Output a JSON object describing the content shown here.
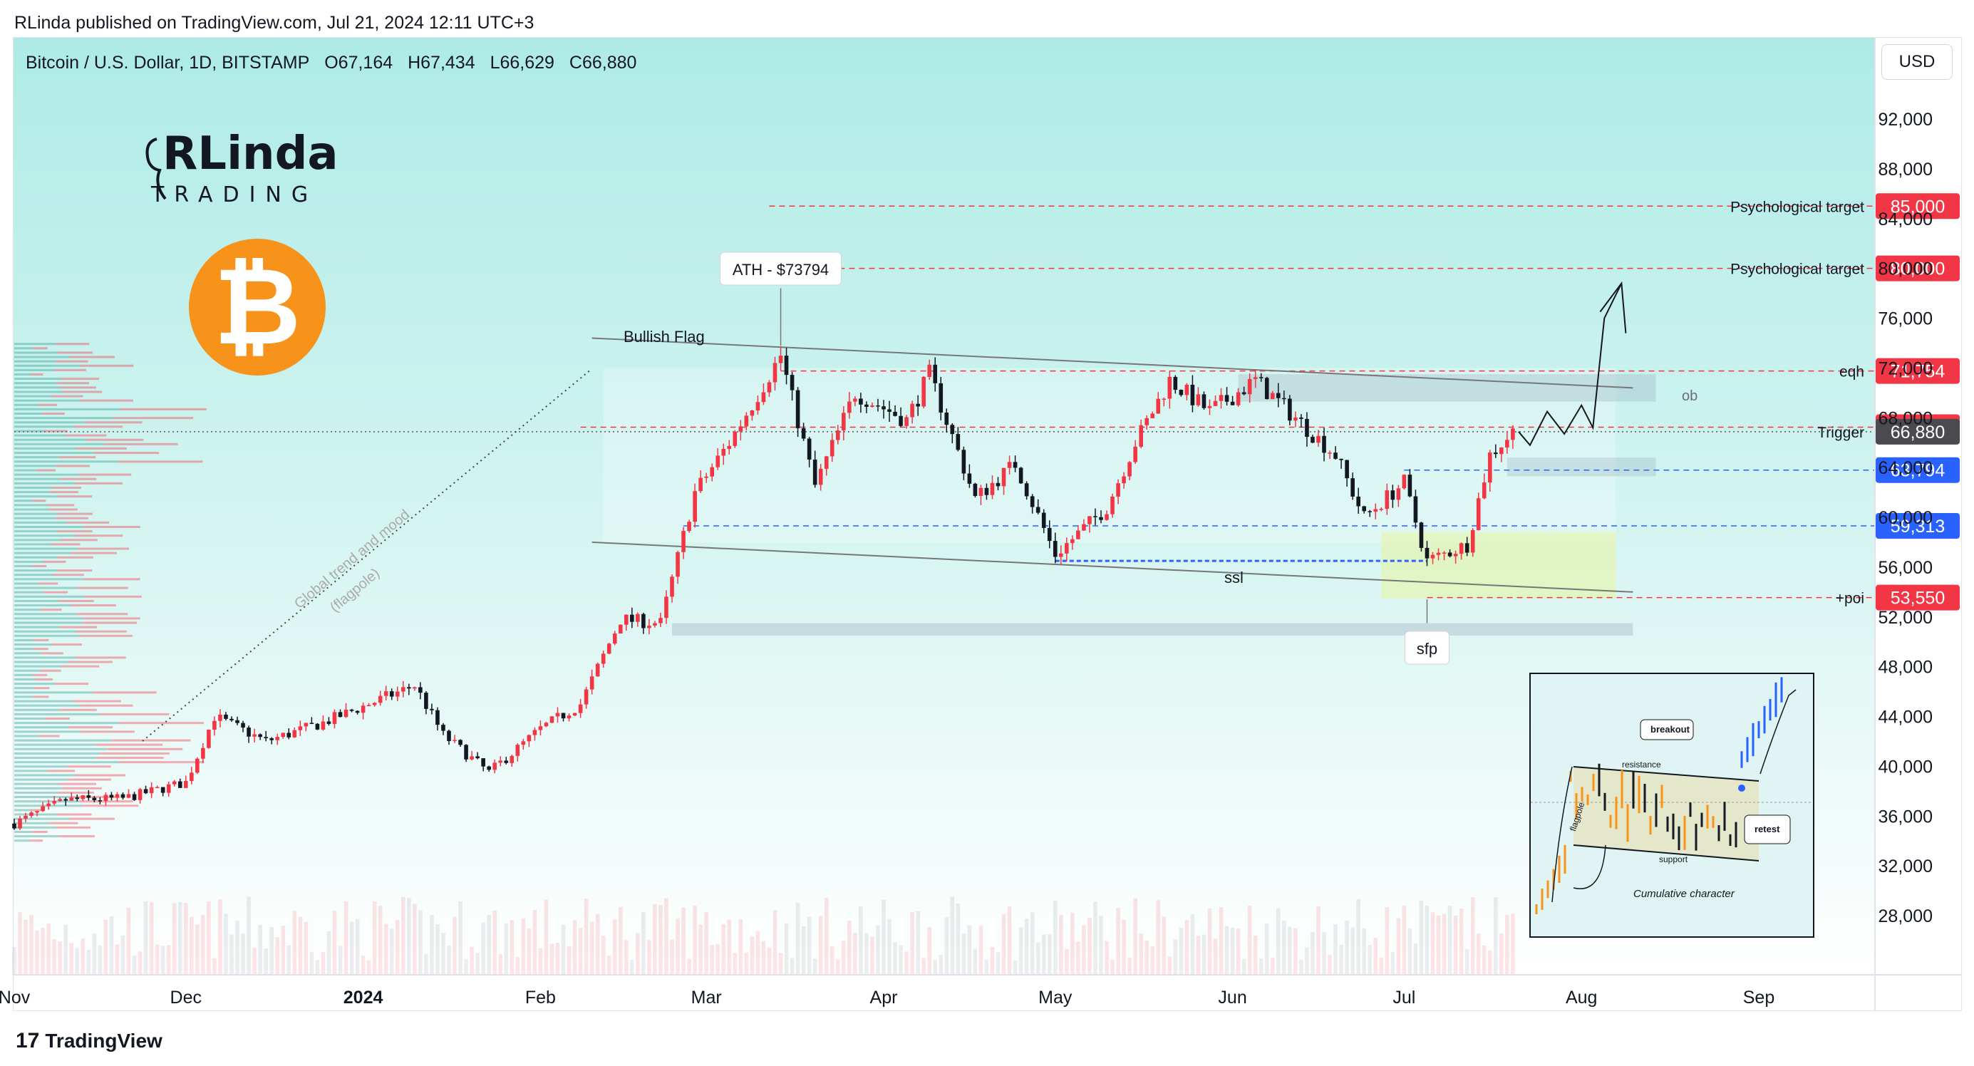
{
  "publisher_line": "RLinda published on TradingView.com, Jul 21, 2024 12:11 UTC+3",
  "symbol": {
    "name": "Bitcoin / U.S. Dollar, 1D, BITSTAMP",
    "open": "O67,164",
    "high": "H67,434",
    "low": "L66,629",
    "close": "C66,880"
  },
  "currency_button": "USD",
  "brand_footer": "TradingView",
  "logo": {
    "top": "RLinda",
    "bottom": "TRADING"
  },
  "btc_symbol": "₿",
  "colors": {
    "bg_top": "#aeebe6",
    "bg_bottom": "#ffffff",
    "up": "#f23645",
    "down": "#131722",
    "red_label": "#f23645",
    "blue_label": "#2962ff",
    "gray_label": "#4a4a4f",
    "btc_orange": "#f7931a"
  },
  "chart_data": {
    "type": "line",
    "title": "Bitcoin / U.S. Dollar, 1D, BITSTAMP",
    "ylabel": "USD",
    "ylim": [
      25000,
      96000
    ],
    "y_ticks": [
      "92,000",
      "88,000",
      "84,000",
      "80,000",
      "76,000",
      "72,000",
      "68,000",
      "64,000",
      "60,000",
      "56,000",
      "52,000",
      "48,000",
      "44,000",
      "40,000",
      "36,000",
      "32,000",
      "28,000"
    ],
    "x_labels": [
      {
        "label": "Nov",
        "date": "2023-11-01"
      },
      {
        "label": "Dec",
        "date": "2023-12-01"
      },
      {
        "label": "2024",
        "date": "2024-01-01",
        "bold": true
      },
      {
        "label": "Feb",
        "date": "2024-02-01"
      },
      {
        "label": "Mar",
        "date": "2024-03-01"
      },
      {
        "label": "Apr",
        "date": "2024-04-01"
      },
      {
        "label": "May",
        "date": "2024-05-01"
      },
      {
        "label": "Jun",
        "date": "2024-06-01"
      },
      {
        "label": "Jul",
        "date": "2024-07-01"
      },
      {
        "label": "Aug",
        "date": "2024-08-01"
      },
      {
        "label": "Sep",
        "date": "2024-09-01"
      }
    ],
    "series": [
      {
        "values": [
          {
            "x": "2023-11-01",
            "y": 35400
          },
          {
            "x": "2023-11-10",
            "y": 37300
          },
          {
            "x": "2023-11-20",
            "y": 37400
          },
          {
            "x": "2023-12-01",
            "y": 38700
          },
          {
            "x": "2023-12-06",
            "y": 44000
          },
          {
            "x": "2023-12-15",
            "y": 42000
          },
          {
            "x": "2023-12-25",
            "y": 43500
          },
          {
            "x": "2024-01-02",
            "y": 45000
          },
          {
            "x": "2024-01-10",
            "y": 46500
          },
          {
            "x": "2024-01-15",
            "y": 42500
          },
          {
            "x": "2024-01-23",
            "y": 39500
          },
          {
            "x": "2024-02-01",
            "y": 43000
          },
          {
            "x": "2024-02-08",
            "y": 45000
          },
          {
            "x": "2024-02-15",
            "y": 51800
          },
          {
            "x": "2024-02-22",
            "y": 51500
          },
          {
            "x": "2024-02-28",
            "y": 62000
          },
          {
            "x": "2024-03-05",
            "y": 66000
          },
          {
            "x": "2024-03-14",
            "y": 73000
          },
          {
            "x": "2024-03-20",
            "y": 62500
          },
          {
            "x": "2024-03-27",
            "y": 70000
          },
          {
            "x": "2024-04-05",
            "y": 67800
          },
          {
            "x": "2024-04-09",
            "y": 71500
          },
          {
            "x": "2024-04-17",
            "y": 61500
          },
          {
            "x": "2024-04-24",
            "y": 64300
          },
          {
            "x": "2024-05-01",
            "y": 57000
          },
          {
            "x": "2024-05-10",
            "y": 60800
          },
          {
            "x": "2024-05-15",
            "y": 66000
          },
          {
            "x": "2024-05-21",
            "y": 71000
          },
          {
            "x": "2024-05-28",
            "y": 68500
          },
          {
            "x": "2024-06-05",
            "y": 71000
          },
          {
            "x": "2024-06-12",
            "y": 68000
          },
          {
            "x": "2024-06-19",
            "y": 65000
          },
          {
            "x": "2024-06-24",
            "y": 60000
          },
          {
            "x": "2024-07-01",
            "y": 62800
          },
          {
            "x": "2024-07-05",
            "y": 56500
          },
          {
            "x": "2024-07-12",
            "y": 57800
          },
          {
            "x": "2024-07-16",
            "y": 65000
          },
          {
            "x": "2024-07-20",
            "y": 66880
          }
        ]
      }
    ],
    "projection_path": [
      {
        "x": "2024-07-21",
        "y": 66880
      },
      {
        "x": "2024-07-23",
        "y": 65800
      },
      {
        "x": "2024-07-26",
        "y": 68500
      },
      {
        "x": "2024-07-29",
        "y": 66700
      },
      {
        "x": "2024-08-01",
        "y": 69000
      },
      {
        "x": "2024-08-03",
        "y": 67200
      },
      {
        "x": "2024-08-05",
        "y": 76000
      },
      {
        "x": "2024-08-08",
        "y": 78800
      }
    ],
    "price_labels": [
      {
        "value": "85,000",
        "price": 85000,
        "bg": "#f23645",
        "line": "red",
        "note": "Psychological target"
      },
      {
        "value": "80,000",
        "price": 80000,
        "bg": "#f23645",
        "line": "red",
        "note": "Psychological target"
      },
      {
        "value": "71,754",
        "price": 71754,
        "bg": "#f23645",
        "line": "red",
        "note": "eqh"
      },
      {
        "value": "67,241",
        "price": 67241,
        "bg": "#f23645",
        "line": "red",
        "note": ""
      },
      {
        "value": "66,880",
        "price": 66880,
        "bg": "#4a4a4f",
        "line": "gray",
        "note": "Trigger"
      },
      {
        "value": "63,794",
        "price": 63794,
        "bg": "#2962ff",
        "line": "blue",
        "note": ""
      },
      {
        "value": "59,313",
        "price": 59313,
        "bg": "#2962ff",
        "line": "blue",
        "note": ""
      },
      {
        "value": "53,550",
        "price": 53550,
        "bg": "#f23645",
        "line": "red",
        "note": "+poi"
      }
    ],
    "annotations": {
      "ath": "ATH - $73794",
      "bullish_flag": "Bullish Flag",
      "ob": "ob",
      "ssl": "ssl",
      "sfp": "sfp",
      "trend_line1": "Global trend and mood",
      "trend_line2": "(flagpole)"
    }
  },
  "inset": {
    "breakout": "breakout",
    "resistance": "resistance",
    "retest": "retest",
    "support": "support",
    "flagpole": "flagpole",
    "cumulative": "Cumulative character"
  }
}
